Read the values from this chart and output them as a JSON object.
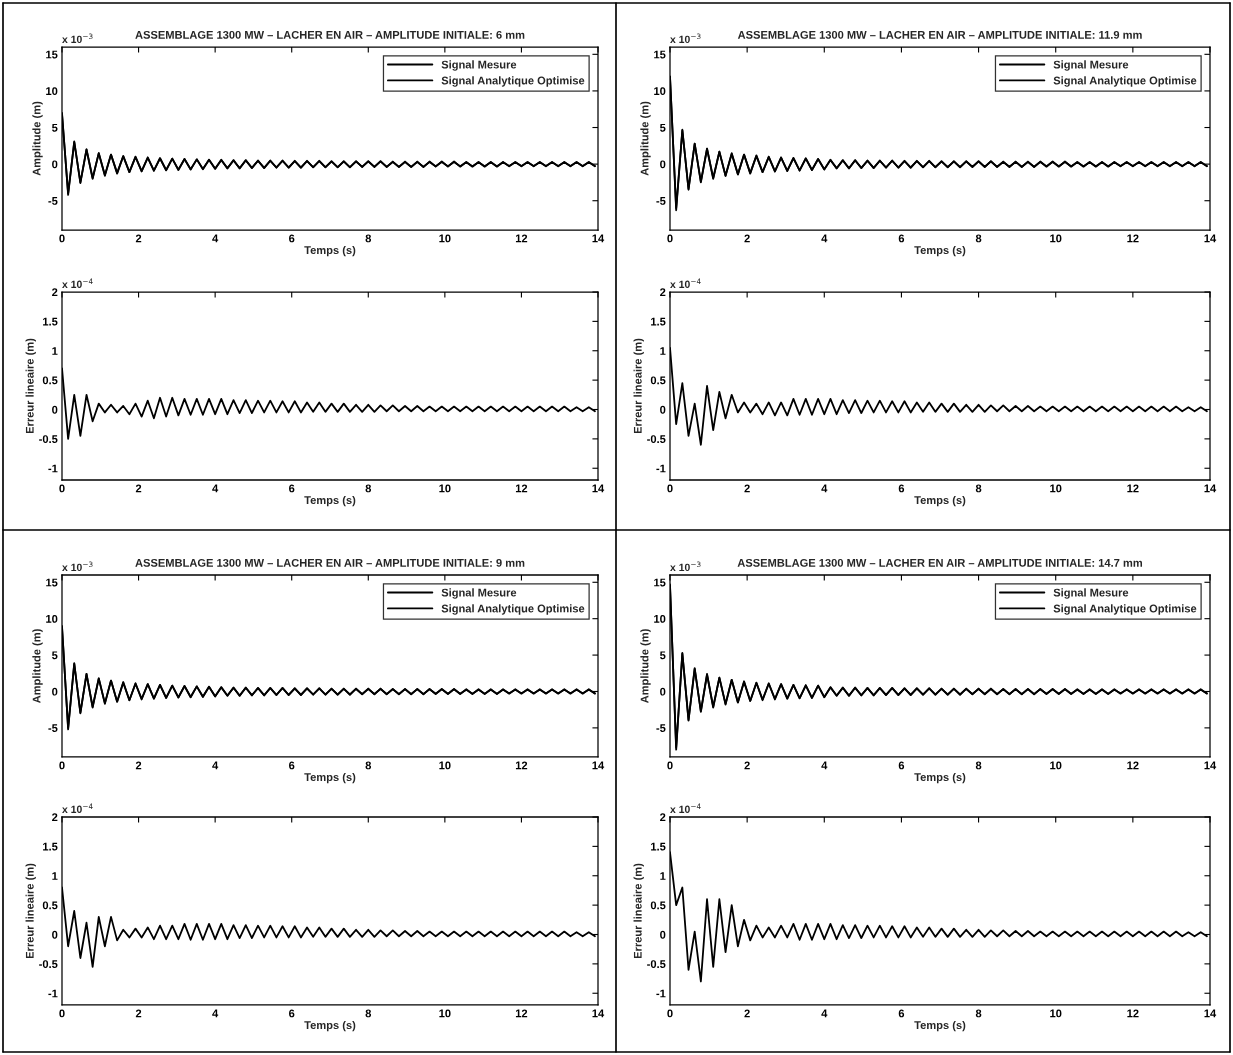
{
  "chart_data": [
    {
      "type": "line",
      "title": "ASSEMBLAGE 1300 MW – LACHER EN AIR – AMPLITUDE INITIALE: 6 mm",
      "xlabel": "Temps (s)",
      "ylabel": "Amplitude (m)",
      "annotations": [
        "x 10$^{−3}$"
      ],
      "legend": "top right",
      "xlim": [
        0,
        14
      ],
      "xticks": [
        0,
        2,
        4,
        6,
        8,
        10,
        12,
        14
      ],
      "ylim": [
        -9,
        16
      ],
      "yticks": [
        -5,
        0,
        5,
        10,
        15
      ],
      "x": [
        0,
        0.16,
        0.32,
        0.48,
        0.64,
        0.8,
        0.96,
        1.12,
        1.28,
        1.44,
        1.6,
        1.76,
        1.92,
        2.08,
        2.24,
        2.4,
        2.56,
        2.72,
        2.88,
        3.04,
        3.2,
        3.36,
        3.52,
        3.68,
        3.84,
        4,
        4.16,
        4.32,
        4.48,
        4.64,
        4.8,
        4.96,
        5.12,
        5.28,
        5.44,
        5.6,
        5.76,
        5.92,
        6.08,
        6.24,
        6.4,
        6.56,
        6.72,
        6.88,
        7.04,
        7.2,
        7.36,
        7.52,
        7.68,
        7.84,
        8,
        8.16,
        8.32,
        8.48,
        8.64,
        8.8,
        8.96,
        9.12,
        9.28,
        9.44,
        9.6,
        9.76,
        9.92,
        10.08,
        10.24,
        10.4,
        10.56,
        10.72,
        10.88,
        11.04,
        11.2,
        11.36,
        11.52,
        11.68,
        11.84,
        12,
        12.16,
        12.32,
        12.48,
        12.64,
        12.8,
        12.96,
        13.12,
        13.28,
        13.44,
        13.6,
        13.76,
        13.92
      ],
      "series": [
        {
          "name": "Signal Mesure",
          "color": "#000000",
          "values": [
            7.0,
            -4.2,
            3.1,
            -2.6,
            2.0,
            -2.0,
            1.5,
            -1.6,
            1.3,
            -1.3,
            1.1,
            -1.1,
            1.0,
            -1.0,
            0.9,
            -0.9,
            0.8,
            -0.85,
            0.75,
            -0.8,
            0.7,
            -0.75,
            0.65,
            -0.7,
            0.6,
            -0.65,
            0.6,
            -0.6,
            0.55,
            -0.6,
            0.55,
            -0.55,
            0.5,
            -0.55,
            0.5,
            -0.5,
            0.5,
            -0.5,
            0.45,
            -0.5,
            0.45,
            -0.45,
            0.45,
            -0.45,
            0.4,
            -0.45,
            0.4,
            -0.45,
            0.4,
            -0.4,
            0.4,
            -0.4,
            0.4,
            -0.4,
            0.35,
            -0.4,
            0.35,
            -0.4,
            0.35,
            -0.4,
            0.35,
            -0.35,
            0.35,
            -0.35,
            0.35,
            -0.35,
            0.3,
            -0.35,
            0.3,
            -0.35,
            0.3,
            -0.35,
            0.3,
            -0.3,
            0.3,
            -0.3,
            0.3,
            -0.3,
            0.3,
            -0.3,
            0.3,
            -0.3,
            0.3,
            -0.3,
            0.3,
            -0.3,
            0.3,
            -0.3
          ]
        },
        {
          "name": "Signal Analytique Optimise",
          "color": "#000000",
          "values": [
            6.8,
            -4.0,
            3.0,
            -2.5,
            2.0,
            -1.9,
            1.5,
            -1.5,
            1.3,
            -1.2,
            1.1,
            -1.1,
            1.0,
            -0.95,
            0.9,
            -0.9,
            0.8,
            -0.8,
            0.75,
            -0.75,
            0.7,
            -0.7,
            0.65,
            -0.65,
            0.6,
            -0.6,
            0.55,
            -0.55,
            0.5,
            -0.55,
            0.5,
            -0.5,
            0.45,
            -0.5,
            0.45,
            -0.45,
            0.45,
            -0.45,
            0.4,
            -0.45,
            0.4,
            -0.4,
            0.4,
            -0.4,
            0.35,
            -0.4,
            0.35,
            -0.4,
            0.35,
            -0.35,
            0.35,
            -0.35,
            0.35,
            -0.35,
            0.3,
            -0.35,
            0.3,
            -0.35,
            0.3,
            -0.35,
            0.3,
            -0.3,
            0.3,
            -0.3,
            0.3,
            -0.3,
            0.25,
            -0.3,
            0.25,
            -0.3,
            0.25,
            -0.3,
            0.25,
            -0.25,
            0.25,
            -0.25,
            0.25,
            -0.25,
            0.25,
            -0.25,
            0.25,
            -0.25,
            0.25,
            -0.25,
            0.25,
            -0.25,
            0.25,
            -0.25
          ]
        }
      ]
    },
    {
      "type": "line",
      "title": "ASSEMBLAGE 1300 MW – LACHER EN AIR – AMPLITUDE INITIALE: 11.9 mm",
      "xlabel": "Temps (s)",
      "ylabel": "Amplitude (m)",
      "annotations": [
        "x 10$^{−3}$"
      ],
      "legend": "top right",
      "xlim": [
        0,
        14
      ],
      "xticks": [
        0,
        2,
        4,
        6,
        8,
        10,
        12,
        14
      ],
      "ylim": [
        -9,
        16
      ],
      "yticks": [
        -5,
        0,
        5,
        10,
        15
      ],
      "x": [
        0,
        0.16,
        0.32,
        0.48,
        0.64,
        0.8,
        0.96,
        1.12,
        1.28,
        1.44,
        1.6,
        1.76,
        1.92,
        2.08,
        2.24,
        2.4,
        2.56,
        2.72,
        2.88,
        3.04,
        3.2,
        3.36,
        3.52,
        3.68,
        3.84,
        4,
        4.16,
        4.32,
        4.48,
        4.64,
        4.8,
        4.96,
        5.12,
        5.28,
        5.44,
        5.6,
        5.76,
        5.92,
        6.08,
        6.24,
        6.4,
        6.56,
        6.72,
        6.88,
        7.04,
        7.2,
        7.36,
        7.52,
        7.68,
        7.84,
        8,
        8.16,
        8.32,
        8.48,
        8.64,
        8.8,
        8.96,
        9.12,
        9.28,
        9.44,
        9.6,
        9.76,
        9.92,
        10.08,
        10.24,
        10.4,
        10.56,
        10.72,
        10.88,
        11.04,
        11.2,
        11.36,
        11.52,
        11.68,
        11.84,
        12,
        12.16,
        12.32,
        12.48,
        12.64,
        12.8,
        12.96,
        13.12,
        13.28,
        13.44,
        13.6,
        13.76,
        13.92
      ],
      "series": [
        {
          "name": "Signal Mesure",
          "color": "#000000",
          "values": [
            12.0,
            -6.3,
            4.7,
            -3.5,
            2.8,
            -2.5,
            2.1,
            -2.0,
            1.7,
            -1.6,
            1.5,
            -1.4,
            1.3,
            -1.3,
            1.2,
            -1.1,
            1.0,
            -1.0,
            0.9,
            -0.95,
            0.85,
            -0.9,
            0.8,
            -0.8,
            0.7,
            -0.75,
            0.6,
            -0.6,
            0.55,
            -0.6,
            0.55,
            -0.55,
            0.5,
            -0.55,
            0.5,
            -0.5,
            0.5,
            -0.5,
            0.45,
            -0.5,
            0.45,
            -0.45,
            0.45,
            -0.45,
            0.4,
            -0.45,
            0.4,
            -0.45,
            0.4,
            -0.4,
            0.4,
            -0.4,
            0.4,
            -0.4,
            0.35,
            -0.4,
            0.35,
            -0.4,
            0.35,
            -0.4,
            0.35,
            -0.35,
            0.35,
            -0.35,
            0.35,
            -0.35,
            0.3,
            -0.35,
            0.3,
            -0.35,
            0.3,
            -0.35,
            0.3,
            -0.3,
            0.3,
            -0.3,
            0.3,
            -0.3,
            0.3,
            -0.3,
            0.3,
            -0.3,
            0.3,
            -0.3,
            0.3,
            -0.3,
            0.3,
            -0.3
          ]
        },
        {
          "name": "Signal Analytique Optimise",
          "color": "#000000",
          "values": [
            11.9,
            -6.0,
            4.6,
            -3.4,
            2.8,
            -2.4,
            2.1,
            -1.9,
            1.7,
            -1.6,
            1.4,
            -1.4,
            1.3,
            -1.2,
            1.1,
            -1.1,
            1.0,
            -1.0,
            0.9,
            -0.9,
            0.8,
            -0.85,
            0.75,
            -0.8,
            0.7,
            -0.7,
            0.55,
            -0.55,
            0.5,
            -0.55,
            0.5,
            -0.5,
            0.45,
            -0.5,
            0.45,
            -0.45,
            0.45,
            -0.45,
            0.4,
            -0.45,
            0.4,
            -0.4,
            0.4,
            -0.4,
            0.35,
            -0.4,
            0.35,
            -0.4,
            0.35,
            -0.35,
            0.35,
            -0.35,
            0.35,
            -0.35,
            0.3,
            -0.35,
            0.3,
            -0.35,
            0.3,
            -0.35,
            0.3,
            -0.3,
            0.3,
            -0.3,
            0.3,
            -0.3,
            0.25,
            -0.3,
            0.25,
            -0.3,
            0.25,
            -0.3,
            0.25,
            -0.25,
            0.25,
            -0.25,
            0.25,
            -0.25,
            0.25,
            -0.25,
            0.25,
            -0.25,
            0.25,
            -0.25,
            0.25,
            -0.25,
            0.25,
            -0.25
          ]
        }
      ]
    },
    {
      "type": "line",
      "xlabel": "Temps (s)",
      "ylabel": "Erreur lineaire (m)",
      "annotations": [
        "x 10$^{−4}$"
      ],
      "xlim": [
        0,
        14
      ],
      "xticks": [
        0,
        2,
        4,
        6,
        8,
        10,
        12,
        14
      ],
      "ylim": [
        -1.2,
        2
      ],
      "yticks": [
        -1,
        -0.5,
        0,
        0.5,
        1,
        1.5,
        2
      ],
      "x": [
        0,
        0.16,
        0.32,
        0.48,
        0.64,
        0.8,
        0.96,
        1.12,
        1.28,
        1.44,
        1.6,
        1.76,
        1.92,
        2.08,
        2.24,
        2.4,
        2.56,
        2.72,
        2.88,
        3.04,
        3.2,
        3.36,
        3.52,
        3.68,
        3.84,
        4,
        4.16,
        4.32,
        4.48,
        4.64,
        4.8,
        4.96,
        5.12,
        5.28,
        5.44,
        5.6,
        5.76,
        5.92,
        6.08,
        6.24,
        6.4,
        6.56,
        6.72,
        6.88,
        7.04,
        7.2,
        7.36,
        7.52,
        7.68,
        7.84,
        8,
        8.16,
        8.32,
        8.48,
        8.64,
        8.8,
        8.96,
        9.12,
        9.28,
        9.44,
        9.6,
        9.76,
        9.92,
        10.08,
        10.24,
        10.4,
        10.56,
        10.72,
        10.88,
        11.04,
        11.2,
        11.36,
        11.52,
        11.68,
        11.84,
        12,
        12.16,
        12.32,
        12.48,
        12.64,
        12.8,
        12.96,
        13.12,
        13.28,
        13.44,
        13.6,
        13.76,
        13.92
      ],
      "series": [
        {
          "color": "#000000",
          "values": [
            0.7,
            -0.5,
            0.25,
            -0.45,
            0.25,
            -0.2,
            0.1,
            -0.05,
            0.08,
            -0.05,
            0.06,
            -0.08,
            0.1,
            -0.12,
            0.15,
            -0.15,
            0.2,
            -0.12,
            0.2,
            -0.1,
            0.18,
            -0.09,
            0.18,
            -0.09,
            0.18,
            -0.08,
            0.18,
            -0.08,
            0.16,
            -0.06,
            0.16,
            -0.06,
            0.15,
            -0.05,
            0.15,
            -0.05,
            0.14,
            -0.05,
            0.14,
            -0.05,
            0.12,
            -0.04,
            0.12,
            -0.04,
            0.1,
            -0.04,
            0.1,
            -0.04,
            0.08,
            -0.04,
            0.08,
            -0.04,
            0.07,
            -0.03,
            0.07,
            -0.03,
            0.06,
            -0.03,
            0.06,
            -0.03,
            0.05,
            -0.03,
            0.05,
            -0.03,
            0.05,
            -0.03,
            0.05,
            -0.03,
            0.05,
            -0.03,
            0.05,
            -0.03,
            0.05,
            -0.03,
            0.05,
            -0.03,
            0.05,
            -0.03,
            0.05,
            -0.03,
            0.05,
            -0.03,
            0.05,
            -0.03,
            0.04,
            -0.03,
            0.04,
            -0.03
          ]
        }
      ]
    },
    {
      "type": "line",
      "xlabel": "Temps (s)",
      "ylabel": "Erreur lineaire (m)",
      "annotations": [
        "x 10$^{−4}$"
      ],
      "xlim": [
        0,
        14
      ],
      "xticks": [
        0,
        2,
        4,
        6,
        8,
        10,
        12,
        14
      ],
      "ylim": [
        -1.2,
        2
      ],
      "yticks": [
        -1,
        -0.5,
        0,
        0.5,
        1,
        1.5,
        2
      ],
      "x": [
        0,
        0.16,
        0.32,
        0.48,
        0.64,
        0.8,
        0.96,
        1.12,
        1.28,
        1.44,
        1.6,
        1.76,
        1.92,
        2.08,
        2.24,
        2.4,
        2.56,
        2.72,
        2.88,
        3.04,
        3.2,
        3.36,
        3.52,
        3.68,
        3.84,
        4,
        4.16,
        4.32,
        4.48,
        4.64,
        4.8,
        4.96,
        5.12,
        5.28,
        5.44,
        5.6,
        5.76,
        5.92,
        6.08,
        6.24,
        6.4,
        6.56,
        6.72,
        6.88,
        7.04,
        7.2,
        7.36,
        7.52,
        7.68,
        7.84,
        8,
        8.16,
        8.32,
        8.48,
        8.64,
        8.8,
        8.96,
        9.12,
        9.28,
        9.44,
        9.6,
        9.76,
        9.92,
        10.08,
        10.24,
        10.4,
        10.56,
        10.72,
        10.88,
        11.04,
        11.2,
        11.36,
        11.52,
        11.68,
        11.84,
        12,
        12.16,
        12.32,
        12.48,
        12.64,
        12.8,
        12.96,
        13.12,
        13.28,
        13.44,
        13.6,
        13.76,
        13.92
      ],
      "series": [
        {
          "color": "#000000",
          "values": [
            1.05,
            -0.25,
            0.45,
            -0.45,
            0.1,
            -0.6,
            0.4,
            -0.35,
            0.3,
            -0.15,
            0.25,
            -0.05,
            0.12,
            -0.05,
            0.1,
            -0.08,
            0.12,
            -0.1,
            0.12,
            -0.1,
            0.18,
            -0.09,
            0.18,
            -0.09,
            0.18,
            -0.08,
            0.18,
            -0.08,
            0.16,
            -0.06,
            0.16,
            -0.06,
            0.15,
            -0.05,
            0.15,
            -0.05,
            0.14,
            -0.05,
            0.14,
            -0.05,
            0.12,
            -0.04,
            0.12,
            -0.04,
            0.1,
            -0.04,
            0.1,
            -0.04,
            0.08,
            -0.04,
            0.08,
            -0.04,
            0.07,
            -0.03,
            0.07,
            -0.03,
            0.06,
            -0.03,
            0.06,
            -0.03,
            0.05,
            -0.03,
            0.05,
            -0.03,
            0.05,
            -0.03,
            0.05,
            -0.03,
            0.05,
            -0.03,
            0.05,
            -0.03,
            0.05,
            -0.03,
            0.05,
            -0.03,
            0.05,
            -0.03,
            0.05,
            -0.03,
            0.05,
            -0.03,
            0.05,
            -0.03,
            0.04,
            -0.03,
            0.04,
            -0.03
          ]
        }
      ]
    },
    {
      "type": "line",
      "title": "ASSEMBLAGE 1300 MW – LACHER EN AIR – AMPLITUDE INITIALE: 9 mm",
      "xlabel": "Temps (s)",
      "ylabel": "Amplitude (m)",
      "annotations": [
        "x 10$^{−3}$"
      ],
      "legend": "top right",
      "xlim": [
        0,
        14
      ],
      "xticks": [
        0,
        2,
        4,
        6,
        8,
        10,
        12,
        14
      ],
      "ylim": [
        -9,
        16
      ],
      "yticks": [
        -5,
        0,
        5,
        10,
        15
      ],
      "x": [
        0,
        0.16,
        0.32,
        0.48,
        0.64,
        0.8,
        0.96,
        1.12,
        1.28,
        1.44,
        1.6,
        1.76,
        1.92,
        2.08,
        2.24,
        2.4,
        2.56,
        2.72,
        2.88,
        3.04,
        3.2,
        3.36,
        3.52,
        3.68,
        3.84,
        4,
        4.16,
        4.32,
        4.48,
        4.64,
        4.8,
        4.96,
        5.12,
        5.28,
        5.44,
        5.6,
        5.76,
        5.92,
        6.08,
        6.24,
        6.4,
        6.56,
        6.72,
        6.88,
        7.04,
        7.2,
        7.36,
        7.52,
        7.68,
        7.84,
        8,
        8.16,
        8.32,
        8.48,
        8.64,
        8.8,
        8.96,
        9.12,
        9.28,
        9.44,
        9.6,
        9.76,
        9.92,
        10.08,
        10.24,
        10.4,
        10.56,
        10.72,
        10.88,
        11.04,
        11.2,
        11.36,
        11.52,
        11.68,
        11.84,
        12,
        12.16,
        12.32,
        12.48,
        12.64,
        12.8,
        12.96,
        13.12,
        13.28,
        13.44,
        13.6,
        13.76,
        13.92
      ],
      "series": [
        {
          "name": "Signal Mesure",
          "color": "#000000",
          "values": [
            9.0,
            -5.2,
            3.9,
            -3.0,
            2.4,
            -2.2,
            1.8,
            -1.7,
            1.5,
            -1.4,
            1.3,
            -1.2,
            1.1,
            -1.1,
            1.0,
            -1.0,
            0.9,
            -0.9,
            0.8,
            -0.85,
            0.75,
            -0.8,
            0.7,
            -0.75,
            0.65,
            -0.7,
            0.6,
            -0.6,
            0.55,
            -0.6,
            0.55,
            -0.55,
            0.5,
            -0.55,
            0.5,
            -0.5,
            0.5,
            -0.5,
            0.45,
            -0.5,
            0.45,
            -0.45,
            0.45,
            -0.45,
            0.4,
            -0.45,
            0.4,
            -0.45,
            0.4,
            -0.4,
            0.4,
            -0.4,
            0.4,
            -0.4,
            0.35,
            -0.4,
            0.35,
            -0.4,
            0.35,
            -0.4,
            0.35,
            -0.35,
            0.35,
            -0.35,
            0.35,
            -0.35,
            0.3,
            -0.35,
            0.3,
            -0.35,
            0.3,
            -0.35,
            0.3,
            -0.3,
            0.3,
            -0.3,
            0.3,
            -0.3,
            0.3,
            -0.3,
            0.3,
            -0.3,
            0.3,
            -0.3,
            0.3,
            -0.3,
            0.3,
            -0.3
          ]
        },
        {
          "name": "Signal Analytique Optimise",
          "color": "#000000",
          "values": [
            8.8,
            -5.0,
            3.8,
            -2.9,
            2.4,
            -2.1,
            1.8,
            -1.6,
            1.5,
            -1.4,
            1.2,
            -1.2,
            1.1,
            -1.0,
            1.0,
            -0.95,
            0.9,
            -0.85,
            0.8,
            -0.8,
            0.75,
            -0.75,
            0.7,
            -0.7,
            0.65,
            -0.65,
            0.55,
            -0.55,
            0.5,
            -0.55,
            0.5,
            -0.5,
            0.45,
            -0.5,
            0.45,
            -0.45,
            0.45,
            -0.45,
            0.4,
            -0.45,
            0.4,
            -0.4,
            0.4,
            -0.4,
            0.35,
            -0.4,
            0.35,
            -0.4,
            0.35,
            -0.35,
            0.35,
            -0.35,
            0.35,
            -0.35,
            0.3,
            -0.35,
            0.3,
            -0.35,
            0.3,
            -0.35,
            0.3,
            -0.3,
            0.3,
            -0.3,
            0.3,
            -0.3,
            0.25,
            -0.3,
            0.25,
            -0.3,
            0.25,
            -0.3,
            0.25,
            -0.25,
            0.25,
            -0.25,
            0.25,
            -0.25,
            0.25,
            -0.25,
            0.25,
            -0.25,
            0.25,
            -0.25,
            0.25,
            -0.25,
            0.25,
            -0.25
          ]
        }
      ]
    },
    {
      "type": "line",
      "title": "ASSEMBLAGE 1300 MW – LACHER EN AIR – AMPLITUDE INITIALE: 14.7 mm",
      "xlabel": "Temps (s)",
      "ylabel": "Amplitude (m)",
      "annotations": [
        "x 10$^{−3}$"
      ],
      "legend": "top right",
      "xlim": [
        0,
        14
      ],
      "xticks": [
        0,
        2,
        4,
        6,
        8,
        10,
        12,
        14
      ],
      "ylim": [
        -9,
        16
      ],
      "yticks": [
        -5,
        0,
        5,
        10,
        15
      ],
      "x": [
        0,
        0.16,
        0.32,
        0.48,
        0.64,
        0.8,
        0.96,
        1.12,
        1.28,
        1.44,
        1.6,
        1.76,
        1.92,
        2.08,
        2.24,
        2.4,
        2.56,
        2.72,
        2.88,
        3.04,
        3.2,
        3.36,
        3.52,
        3.68,
        3.84,
        4,
        4.16,
        4.32,
        4.48,
        4.64,
        4.8,
        4.96,
        5.12,
        5.28,
        5.44,
        5.6,
        5.76,
        5.92,
        6.08,
        6.24,
        6.4,
        6.56,
        6.72,
        6.88,
        7.04,
        7.2,
        7.36,
        7.52,
        7.68,
        7.84,
        8,
        8.16,
        8.32,
        8.48,
        8.64,
        8.8,
        8.96,
        9.12,
        9.28,
        9.44,
        9.6,
        9.76,
        9.92,
        10.08,
        10.24,
        10.4,
        10.56,
        10.72,
        10.88,
        11.04,
        11.2,
        11.36,
        11.52,
        11.68,
        11.84,
        12,
        12.16,
        12.32,
        12.48,
        12.64,
        12.8,
        12.96,
        13.12,
        13.28,
        13.44,
        13.6,
        13.76,
        13.92
      ],
      "series": [
        {
          "name": "Signal Mesure",
          "color": "#000000",
          "values": [
            14.7,
            -8.0,
            5.3,
            -4.0,
            3.2,
            -2.8,
            2.4,
            -2.2,
            1.9,
            -1.8,
            1.6,
            -1.5,
            1.4,
            -1.3,
            1.2,
            -1.2,
            1.1,
            -1.1,
            1.0,
            -1.0,
            0.9,
            -0.95,
            0.85,
            -0.9,
            0.8,
            -0.8,
            0.6,
            -0.6,
            0.55,
            -0.6,
            0.55,
            -0.55,
            0.5,
            -0.55,
            0.5,
            -0.5,
            0.5,
            -0.5,
            0.45,
            -0.5,
            0.45,
            -0.45,
            0.45,
            -0.45,
            0.4,
            -0.45,
            0.4,
            -0.45,
            0.4,
            -0.4,
            0.4,
            -0.4,
            0.4,
            -0.4,
            0.35,
            -0.4,
            0.35,
            -0.4,
            0.35,
            -0.4,
            0.35,
            -0.35,
            0.35,
            -0.35,
            0.35,
            -0.35,
            0.3,
            -0.35,
            0.3,
            -0.35,
            0.3,
            -0.35,
            0.3,
            -0.3,
            0.3,
            -0.3,
            0.3,
            -0.3,
            0.3,
            -0.3,
            0.3,
            -0.3,
            0.3,
            -0.3,
            0.3,
            -0.3,
            0.3,
            -0.3
          ]
        },
        {
          "name": "Signal Analytique Optimise",
          "color": "#000000",
          "values": [
            14.5,
            -7.7,
            5.2,
            -3.9,
            3.1,
            -2.7,
            2.3,
            -2.1,
            1.9,
            -1.7,
            1.6,
            -1.5,
            1.3,
            -1.3,
            1.2,
            -1.1,
            1.1,
            -1.0,
            1.0,
            -0.95,
            0.9,
            -0.9,
            0.85,
            -0.85,
            0.8,
            -0.75,
            0.55,
            -0.55,
            0.5,
            -0.55,
            0.5,
            -0.5,
            0.45,
            -0.5,
            0.45,
            -0.45,
            0.45,
            -0.45,
            0.4,
            -0.45,
            0.4,
            -0.4,
            0.4,
            -0.4,
            0.35,
            -0.4,
            0.35,
            -0.4,
            0.35,
            -0.35,
            0.35,
            -0.35,
            0.35,
            -0.35,
            0.3,
            -0.35,
            0.3,
            -0.35,
            0.3,
            -0.35,
            0.3,
            -0.3,
            0.3,
            -0.3,
            0.3,
            -0.3,
            0.25,
            -0.3,
            0.25,
            -0.3,
            0.25,
            -0.3,
            0.25,
            -0.25,
            0.25,
            -0.25,
            0.25,
            -0.25,
            0.25,
            -0.25,
            0.25,
            -0.25,
            0.25,
            -0.25,
            0.25,
            -0.25,
            0.25,
            -0.25
          ]
        }
      ]
    },
    {
      "type": "line",
      "xlabel": "Temps (s)",
      "ylabel": "Erreur lineaire (m)",
      "annotations": [
        "x 10$^{−4}$"
      ],
      "xlim": [
        0,
        14
      ],
      "xticks": [
        0,
        2,
        4,
        6,
        8,
        10,
        12,
        14
      ],
      "ylim": [
        -1.2,
        2
      ],
      "yticks": [
        -1,
        -0.5,
        0,
        0.5,
        1,
        1.5,
        2
      ],
      "x": [
        0,
        0.16,
        0.32,
        0.48,
        0.64,
        0.8,
        0.96,
        1.12,
        1.28,
        1.44,
        1.6,
        1.76,
        1.92,
        2.08,
        2.24,
        2.4,
        2.56,
        2.72,
        2.88,
        3.04,
        3.2,
        3.36,
        3.52,
        3.68,
        3.84,
        4,
        4.16,
        4.32,
        4.48,
        4.64,
        4.8,
        4.96,
        5.12,
        5.28,
        5.44,
        5.6,
        5.76,
        5.92,
        6.08,
        6.24,
        6.4,
        6.56,
        6.72,
        6.88,
        7.04,
        7.2,
        7.36,
        7.52,
        7.68,
        7.84,
        8,
        8.16,
        8.32,
        8.48,
        8.64,
        8.8,
        8.96,
        9.12,
        9.28,
        9.44,
        9.6,
        9.76,
        9.92,
        10.08,
        10.24,
        10.4,
        10.56,
        10.72,
        10.88,
        11.04,
        11.2,
        11.36,
        11.52,
        11.68,
        11.84,
        12,
        12.16,
        12.32,
        12.48,
        12.64,
        12.8,
        12.96,
        13.12,
        13.28,
        13.44,
        13.6,
        13.76,
        13.92
      ],
      "series": [
        {
          "color": "#000000",
          "values": [
            0.8,
            -0.2,
            0.4,
            -0.4,
            0.2,
            -0.55,
            0.3,
            -0.2,
            0.3,
            -0.1,
            0.08,
            -0.05,
            0.1,
            -0.05,
            0.12,
            -0.08,
            0.15,
            -0.08,
            0.15,
            -0.08,
            0.18,
            -0.09,
            0.18,
            -0.09,
            0.18,
            -0.08,
            0.18,
            -0.08,
            0.16,
            -0.06,
            0.16,
            -0.06,
            0.15,
            -0.05,
            0.15,
            -0.05,
            0.14,
            -0.05,
            0.14,
            -0.05,
            0.12,
            -0.04,
            0.12,
            -0.04,
            0.1,
            -0.04,
            0.1,
            -0.04,
            0.08,
            -0.04,
            0.08,
            -0.04,
            0.07,
            -0.03,
            0.07,
            -0.03,
            0.06,
            -0.03,
            0.06,
            -0.03,
            0.05,
            -0.03,
            0.05,
            -0.03,
            0.05,
            -0.03,
            0.05,
            -0.03,
            0.05,
            -0.03,
            0.05,
            -0.03,
            0.05,
            -0.03,
            0.05,
            -0.03,
            0.05,
            -0.03,
            0.05,
            -0.03,
            0.05,
            -0.03,
            0.05,
            -0.03,
            0.04,
            -0.03,
            0.04,
            -0.03
          ]
        }
      ]
    },
    {
      "type": "line",
      "xlabel": "Temps (s)",
      "ylabel": "Erreur lineaire (m)",
      "annotations": [
        "x 10$^{−4}$"
      ],
      "xlim": [
        0,
        14
      ],
      "xticks": [
        0,
        2,
        4,
        6,
        8,
        10,
        12,
        14
      ],
      "ylim": [
        -1.2,
        2
      ],
      "yticks": [
        -1,
        -0.5,
        0,
        0.5,
        1,
        1.5,
        2
      ],
      "x": [
        0,
        0.16,
        0.32,
        0.48,
        0.64,
        0.8,
        0.96,
        1.12,
        1.28,
        1.44,
        1.6,
        1.76,
        1.92,
        2.08,
        2.24,
        2.4,
        2.56,
        2.72,
        2.88,
        3.04,
        3.2,
        3.36,
        3.52,
        3.68,
        3.84,
        4,
        4.16,
        4.32,
        4.48,
        4.64,
        4.8,
        4.96,
        5.12,
        5.28,
        5.44,
        5.6,
        5.76,
        5.92,
        6.08,
        6.24,
        6.4,
        6.56,
        6.72,
        6.88,
        7.04,
        7.2,
        7.36,
        7.52,
        7.68,
        7.84,
        8,
        8.16,
        8.32,
        8.48,
        8.64,
        8.8,
        8.96,
        9.12,
        9.28,
        9.44,
        9.6,
        9.76,
        9.92,
        10.08,
        10.24,
        10.4,
        10.56,
        10.72,
        10.88,
        11.04,
        11.2,
        11.36,
        11.52,
        11.68,
        11.84,
        12,
        12.16,
        12.32,
        12.48,
        12.64,
        12.8,
        12.96,
        13.12,
        13.28,
        13.44,
        13.6,
        13.76,
        13.92
      ],
      "series": [
        {
          "color": "#000000",
          "values": [
            1.4,
            0.5,
            0.8,
            -0.6,
            0.05,
            -0.8,
            0.6,
            -0.55,
            0.6,
            -0.3,
            0.5,
            -0.2,
            0.25,
            -0.1,
            0.15,
            -0.05,
            0.12,
            -0.05,
            0.15,
            -0.05,
            0.18,
            -0.09,
            0.18,
            -0.09,
            0.18,
            -0.08,
            0.18,
            -0.08,
            0.16,
            -0.06,
            0.16,
            -0.06,
            0.15,
            -0.05,
            0.15,
            -0.05,
            0.14,
            -0.05,
            0.14,
            -0.05,
            0.12,
            -0.04,
            0.12,
            -0.04,
            0.1,
            -0.04,
            0.1,
            -0.04,
            0.08,
            -0.04,
            0.08,
            -0.04,
            0.07,
            -0.03,
            0.07,
            -0.03,
            0.06,
            -0.03,
            0.06,
            -0.03,
            0.05,
            -0.03,
            0.05,
            -0.03,
            0.05,
            -0.03,
            0.05,
            -0.03,
            0.05,
            -0.03,
            0.05,
            -0.03,
            0.05,
            -0.03,
            0.05,
            -0.03,
            0.05,
            -0.03,
            0.05,
            -0.03,
            0.05,
            -0.03,
            0.05,
            -0.03,
            0.04,
            -0.03,
            0.04,
            -0.03
          ]
        }
      ]
    }
  ]
}
